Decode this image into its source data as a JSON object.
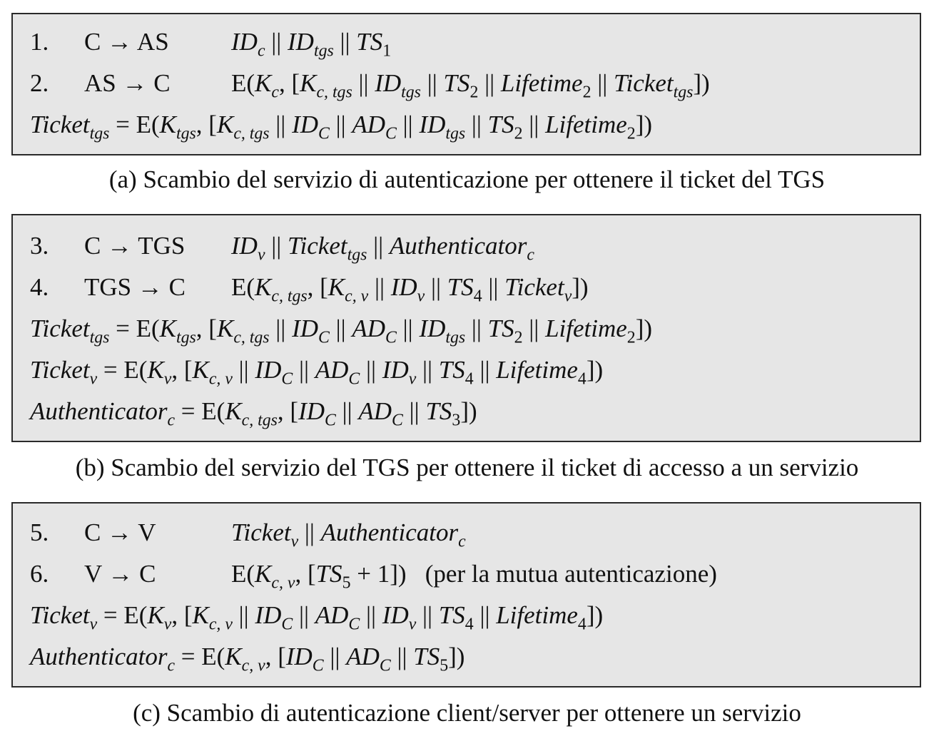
{
  "panels": [
    {
      "id": "a",
      "caption": "(a) Scambio del servizio di autenticazione per ottenere il ticket del TGS",
      "messages": [
        {
          "num": "1.",
          "dir": "C → AS",
          "content": "ID_c || ID_tgs || TS_1"
        },
        {
          "num": "2.",
          "dir": "AS → C",
          "content": "E(K_c, [K_c,tgs || ID_tgs || TS_2 || Lifetime_2 || Ticket_tgs])"
        }
      ],
      "definitions": [
        "Ticket_tgs = E(K_tgs, [K_c,tgs || ID_C || AD_C || ID_tgs || TS_2 || Lifetime_2])"
      ]
    },
    {
      "id": "b",
      "caption": "(b) Scambio del servizio del TGS per ottenere il ticket di accesso a un servizio",
      "messages": [
        {
          "num": "3.",
          "dir": "C → TGS",
          "content": "ID_v || Ticket_tgs || Authenticator_c"
        },
        {
          "num": "4.",
          "dir": "TGS → C",
          "content": "E(K_c,tgs, [K_c,v || ID_v || TS_4 || Ticket_v])"
        }
      ],
      "definitions": [
        "Ticket_tgs = E(K_tgs, [K_c,tgs || ID_C || AD_C || ID_tgs || TS_2 || Lifetime_2])",
        "Ticket_v = E(K_v, [K_c,v || ID_C || AD_C || ID_v || TS_4 || Lifetime_4])",
        "Authenticator_c = E(K_c,tgs, [ID_C || AD_C || TS_3])"
      ]
    },
    {
      "id": "c",
      "caption": "(c) Scambio di autenticazione client/server per ottenere un servizio",
      "messages": [
        {
          "num": "5.",
          "dir": "C → V",
          "content": "Ticket_v || Authenticator_c"
        },
        {
          "num": "6.",
          "dir": "V → C",
          "content": "E(K_c,v, [TS_5 + 1])",
          "note": "(per la mutua autenticazione)"
        }
      ],
      "definitions": [
        "Ticket_v = E(K_v, [K_c,v || ID_C || AD_C || ID_v || TS_4 || Lifetime_4])",
        "Authenticator_c = E(K_c,v, [ID_C || AD_C || TS_5])"
      ]
    }
  ]
}
